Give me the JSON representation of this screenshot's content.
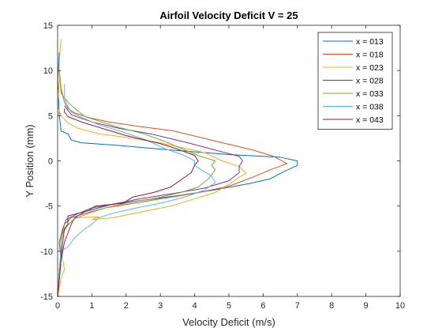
{
  "chart_data": {
    "type": "line",
    "title": "Airfoil Velocity Deficit V = 25",
    "xlabel": "Velocity Deficit (m/s)",
    "ylabel": "Y Position (mm)",
    "xlim": [
      0,
      10
    ],
    "ylim": [
      -15,
      15
    ],
    "xticks": [
      0,
      1,
      2,
      3,
      4,
      5,
      6,
      7,
      8,
      9,
      10
    ],
    "yticks": [
      -15,
      -10,
      -5,
      0,
      5,
      10,
      15
    ],
    "grid": false,
    "legend_position": "top-right",
    "series": [
      {
        "name": "x = 013",
        "color": "#0072BD",
        "points": [
          [
            0.0,
            -15
          ],
          [
            0.05,
            -13
          ],
          [
            0.1,
            -11
          ],
          [
            0.05,
            -9
          ],
          [
            0.15,
            -7.5
          ],
          [
            0.25,
            -6.5
          ],
          [
            0.5,
            -6
          ],
          [
            1.0,
            -5.2
          ],
          [
            1.8,
            -4.7
          ],
          [
            2.6,
            -4.3
          ],
          [
            3.6,
            -3.8
          ],
          [
            4.6,
            -3.2
          ],
          [
            5.6,
            -2.5
          ],
          [
            6.2,
            -2.0
          ],
          [
            6.6,
            -1.2
          ],
          [
            7.0,
            -0.5
          ],
          [
            7.0,
            0
          ],
          [
            6.5,
            0.4
          ],
          [
            5.0,
            0.7
          ],
          [
            3.0,
            1.3
          ],
          [
            1.8,
            1.7
          ],
          [
            0.7,
            2.0
          ],
          [
            0.4,
            2.3
          ],
          [
            0.3,
            3.0
          ],
          [
            0.1,
            3.3
          ],
          [
            0.05,
            5
          ],
          [
            0.0,
            9
          ],
          [
            0.05,
            12
          ]
        ]
      },
      {
        "name": "x = 018",
        "color": "#D95319",
        "points": [
          [
            0.0,
            -15
          ],
          [
            0.05,
            -12
          ],
          [
            0.1,
            -10
          ],
          [
            0.1,
            -8.5
          ],
          [
            0.2,
            -7
          ],
          [
            0.4,
            -6.3
          ],
          [
            0.8,
            -5.8
          ],
          [
            1.4,
            -5.2
          ],
          [
            2.2,
            -4.7
          ],
          [
            3.0,
            -4.2
          ],
          [
            4.0,
            -3.6
          ],
          [
            5.0,
            -2.8
          ],
          [
            5.7,
            -1.8
          ],
          [
            6.2,
            -1.0
          ],
          [
            6.7,
            -0.3
          ],
          [
            6.3,
            0.5
          ],
          [
            5.7,
            1.2
          ],
          [
            4.6,
            2.2
          ],
          [
            3.4,
            3.3
          ],
          [
            2.4,
            3.8
          ],
          [
            1.5,
            4.3
          ],
          [
            0.9,
            4.8
          ],
          [
            0.5,
            5.3
          ],
          [
            0.3,
            5.8
          ],
          [
            0.2,
            6.5
          ],
          [
            0.1,
            8
          ],
          [
            0.05,
            10
          ]
        ]
      },
      {
        "name": "x = 023",
        "color": "#EDB120",
        "points": [
          [
            0.0,
            -15
          ],
          [
            0.1,
            -13
          ],
          [
            0.2,
            -12
          ],
          [
            0.1,
            -10
          ],
          [
            0.1,
            -8.5
          ],
          [
            0.2,
            -7.5
          ],
          [
            0.5,
            -6.3
          ],
          [
            1.2,
            -6.2
          ],
          [
            1.0,
            -6.5
          ],
          [
            1.6,
            -6.3
          ],
          [
            3.3,
            -5.0
          ],
          [
            4.6,
            -3.5
          ],
          [
            5.0,
            -2.6
          ],
          [
            5.3,
            -1.8
          ],
          [
            5.5,
            -1.4
          ],
          [
            5.3,
            -0.6
          ],
          [
            4.8,
            0.0
          ],
          [
            4.3,
            0.9
          ],
          [
            3.0,
            2.0
          ],
          [
            2.0,
            2.6
          ],
          [
            1.2,
            3.0
          ],
          [
            0.6,
            3.6
          ],
          [
            0.3,
            4.2
          ],
          [
            0.1,
            5.0
          ],
          [
            0.0,
            6
          ],
          [
            0.05,
            9
          ],
          [
            0.05,
            11
          ],
          [
            0.1,
            13.5
          ]
        ]
      },
      {
        "name": "x = 028",
        "color": "#7E2F8E",
        "points": [
          [
            0.0,
            -15
          ],
          [
            0.05,
            -13
          ],
          [
            0.1,
            -11
          ],
          [
            0.2,
            -9
          ],
          [
            0.3,
            -8
          ],
          [
            0.4,
            -7
          ],
          [
            0.5,
            -6.3
          ],
          [
            0.8,
            -5.6
          ],
          [
            1.6,
            -4.8
          ],
          [
            2.4,
            -4.2
          ],
          [
            3.4,
            -3.6
          ],
          [
            4.3,
            -3.0
          ],
          [
            5.0,
            -2.2
          ],
          [
            5.3,
            -1.3
          ],
          [
            5.3,
            -0.6
          ],
          [
            5.4,
            0.0
          ],
          [
            5.3,
            0.5
          ],
          [
            4.8,
            1.0
          ],
          [
            4.2,
            1.6
          ],
          [
            3.7,
            2.1
          ],
          [
            2.7,
            3.0
          ],
          [
            1.8,
            3.6
          ],
          [
            1.0,
            4.3
          ],
          [
            0.4,
            5.1
          ],
          [
            0.3,
            5.6
          ],
          [
            0.2,
            6.1
          ]
        ]
      },
      {
        "name": "x = 033",
        "color": "#77AC30",
        "points": [
          [
            0.0,
            -15
          ],
          [
            0.05,
            -12
          ],
          [
            0.1,
            -10
          ],
          [
            0.1,
            -9
          ],
          [
            0.15,
            -8
          ],
          [
            0.3,
            -7.1
          ],
          [
            0.5,
            -6.4
          ],
          [
            0.9,
            -5.8
          ],
          [
            1.4,
            -5.2
          ],
          [
            2.1,
            -4.6
          ],
          [
            2.9,
            -4.1
          ],
          [
            3.6,
            -3.5
          ],
          [
            4.1,
            -2.9
          ],
          [
            4.4,
            -2.0
          ],
          [
            4.6,
            -1.0
          ],
          [
            4.5,
            -0.5
          ],
          [
            4.6,
            0
          ],
          [
            4.1,
            0.6
          ],
          [
            3.6,
            1.4
          ],
          [
            3.1,
            2.2
          ],
          [
            2.5,
            3.0
          ],
          [
            1.7,
            3.8
          ],
          [
            0.8,
            4.9
          ],
          [
            0.5,
            5.8
          ],
          [
            0.3,
            6.5
          ],
          [
            0.1,
            7.5
          ],
          [
            0.05,
            10
          ]
        ]
      },
      {
        "name": "x = 038",
        "color": "#4DBEEE",
        "points": [
          [
            0.0,
            -15
          ],
          [
            0.05,
            -12
          ],
          [
            0.1,
            -10
          ],
          [
            0.3,
            -9.5
          ],
          [
            0.5,
            -8.5
          ],
          [
            0.8,
            -7.5
          ],
          [
            1.0,
            -7.0
          ],
          [
            1.2,
            -6.3
          ],
          [
            1.6,
            -5.8
          ],
          [
            2.3,
            -5.2
          ],
          [
            3.1,
            -4.6
          ],
          [
            3.8,
            -3.9
          ],
          [
            4.3,
            -3.2
          ],
          [
            4.6,
            -2.4
          ],
          [
            4.5,
            -1.7
          ],
          [
            4.2,
            -1.0
          ],
          [
            4.0,
            -0.5
          ],
          [
            4.0,
            0
          ],
          [
            3.7,
            0.6
          ],
          [
            3.1,
            1.4
          ],
          [
            2.6,
            2.3
          ],
          [
            1.9,
            3.2
          ],
          [
            1.2,
            4.0
          ],
          [
            0.7,
            4.8
          ],
          [
            0.4,
            5.4
          ],
          [
            0.3,
            6.0
          ],
          [
            0.2,
            7.0
          ],
          [
            0.2,
            8.5
          ]
        ]
      },
      {
        "name": "x = 043",
        "color": "#A2142F",
        "points": [
          [
            0.0,
            -15
          ],
          [
            0.05,
            -13
          ],
          [
            0.1,
            -11
          ],
          [
            0.15,
            -9
          ],
          [
            0.2,
            -7.5
          ],
          [
            0.3,
            -7.0
          ],
          [
            0.3,
            -6.1
          ],
          [
            0.6,
            -5.8
          ],
          [
            0.9,
            -5.5
          ],
          [
            1.1,
            -5.0
          ],
          [
            1.9,
            -4.7
          ],
          [
            2.2,
            -4.0
          ],
          [
            2.8,
            -3.5
          ],
          [
            3.3,
            -2.9
          ],
          [
            3.6,
            -2.1
          ],
          [
            3.9,
            -1.3
          ],
          [
            4.0,
            -0.5
          ],
          [
            4.1,
            0.0
          ],
          [
            4.0,
            0.6
          ],
          [
            3.5,
            1.3
          ],
          [
            3.0,
            1.9
          ],
          [
            2.0,
            2.8
          ],
          [
            1.3,
            3.6
          ],
          [
            0.7,
            4.3
          ],
          [
            0.3,
            4.9
          ],
          [
            0.2,
            5.4
          ],
          [
            0.2,
            5.8
          ]
        ]
      }
    ]
  }
}
